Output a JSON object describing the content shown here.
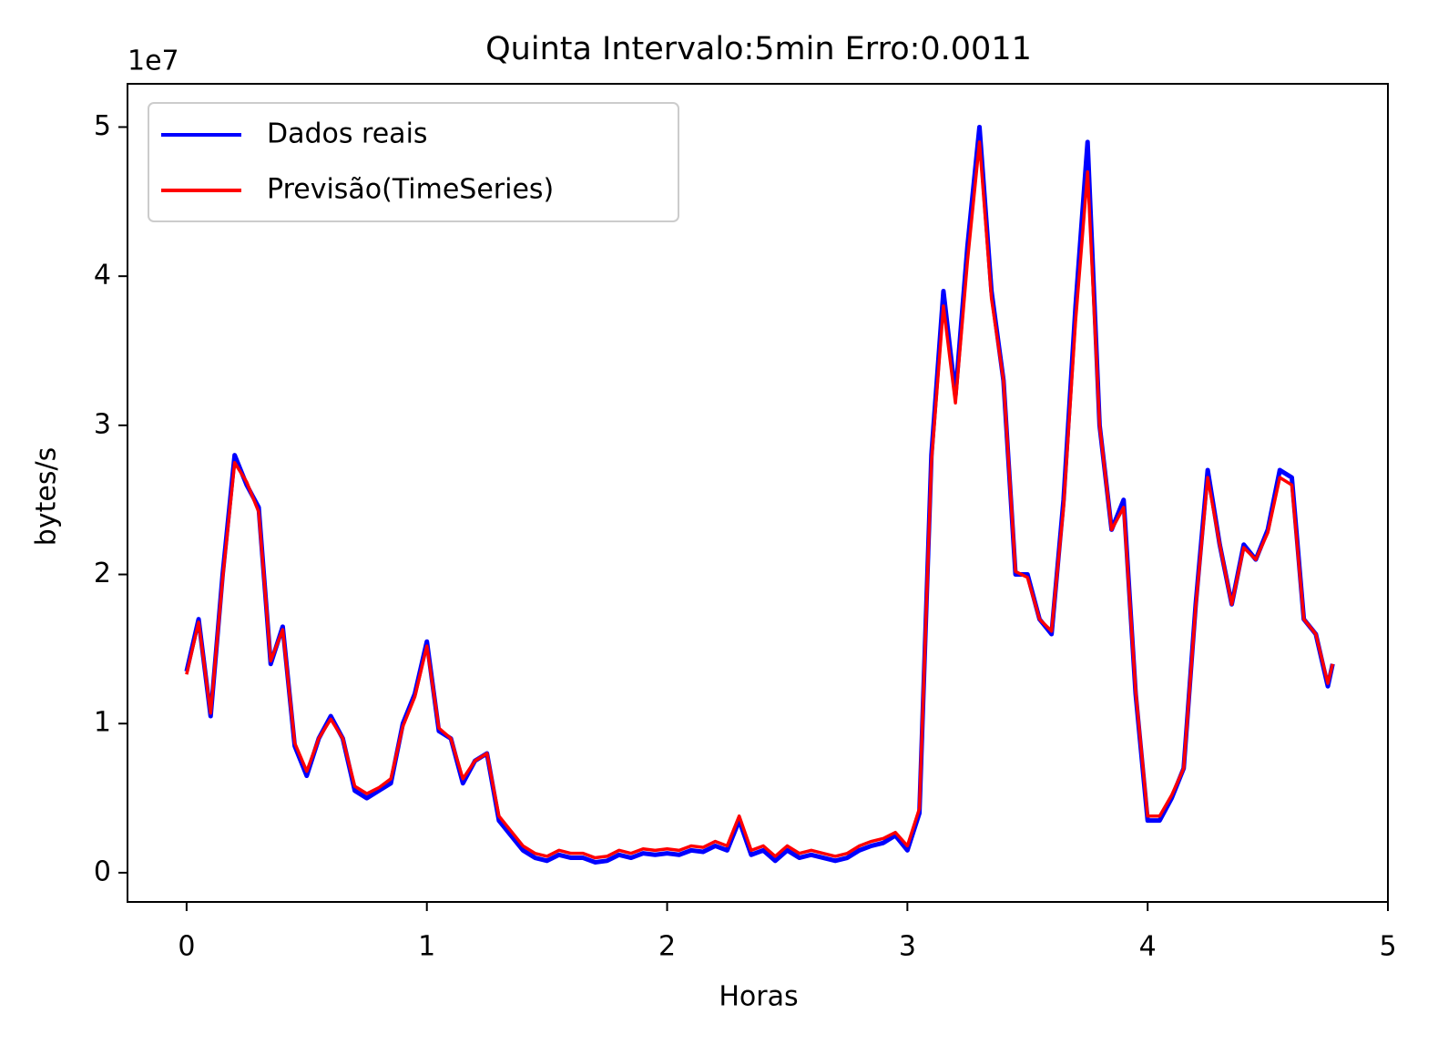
{
  "chart_data": {
    "type": "line",
    "title": "Quinta Intervalo:5min Erro:0.0011",
    "x_label": "Horas",
    "y_label": "bytes/s",
    "y_offset_text": "1e7",
    "x": [
      0,
      0.05,
      0.1,
      0.15,
      0.2,
      0.25,
      0.3,
      0.35,
      0.4,
      0.45,
      0.5,
      0.55,
      0.6,
      0.65,
      0.7,
      0.75,
      0.8,
      0.85,
      0.9,
      0.95,
      1.0,
      1.05,
      1.1,
      1.15,
      1.2,
      1.25,
      1.3,
      1.35,
      1.4,
      1.45,
      1.5,
      1.55,
      1.6,
      1.65,
      1.7,
      1.75,
      1.8,
      1.85,
      1.9,
      1.95,
      2.0,
      2.05,
      2.1,
      2.15,
      2.2,
      2.25,
      2.3,
      2.35,
      2.4,
      2.45,
      2.5,
      2.55,
      2.6,
      2.65,
      2.7,
      2.75,
      2.8,
      2.85,
      2.9,
      2.95,
      3.0,
      3.05,
      3.1,
      3.15,
      3.2,
      3.25,
      3.3,
      3.35,
      3.4,
      3.45,
      3.5,
      3.55,
      3.6,
      3.65,
      3.7,
      3.75,
      3.8,
      3.85,
      3.9,
      3.95,
      4.0,
      4.05,
      4.1,
      4.15,
      4.2,
      4.25,
      4.3,
      4.35,
      4.4,
      4.45,
      4.5,
      4.55,
      4.6,
      4.65,
      4.7,
      4.75,
      4.77
    ],
    "series": [
      {
        "name": "Dados reais",
        "color": "#0000ff",
        "width": 5,
        "values": [
          1.35,
          1.7,
          1.05,
          2.0,
          2.8,
          2.6,
          2.45,
          1.4,
          1.65,
          0.85,
          0.65,
          0.9,
          1.05,
          0.9,
          0.55,
          0.5,
          0.55,
          0.6,
          1.0,
          1.2,
          1.55,
          0.95,
          0.9,
          0.6,
          0.75,
          0.8,
          0.35,
          0.25,
          0.15,
          0.1,
          0.08,
          0.12,
          0.1,
          0.1,
          0.07,
          0.08,
          0.12,
          0.1,
          0.13,
          0.12,
          0.13,
          0.12,
          0.15,
          0.14,
          0.18,
          0.15,
          0.35,
          0.12,
          0.15,
          0.08,
          0.15,
          0.1,
          0.12,
          0.1,
          0.08,
          0.1,
          0.15,
          0.18,
          0.2,
          0.25,
          0.15,
          0.4,
          2.8,
          3.9,
          3.2,
          4.2,
          5.0,
          3.9,
          3.3,
          2.0,
          2.0,
          1.7,
          1.6,
          2.5,
          3.8,
          4.9,
          3.0,
          2.3,
          2.5,
          1.2,
          0.35,
          0.35,
          0.5,
          0.7,
          1.8,
          2.7,
          2.2,
          1.8,
          2.2,
          2.1,
          2.3,
          2.7,
          2.65,
          1.7,
          1.6,
          1.25,
          1.4
        ]
      },
      {
        "name": "Previsão(TimeSeries)",
        "color": "#ff0000",
        "width": 3.5,
        "values": [
          1.33,
          1.68,
          1.07,
          1.97,
          2.75,
          2.62,
          2.42,
          1.42,
          1.63,
          0.87,
          0.68,
          0.9,
          1.03,
          0.9,
          0.58,
          0.53,
          0.57,
          0.63,
          0.98,
          1.18,
          1.52,
          0.97,
          0.9,
          0.63,
          0.75,
          0.8,
          0.38,
          0.28,
          0.18,
          0.13,
          0.11,
          0.15,
          0.13,
          0.13,
          0.1,
          0.11,
          0.15,
          0.13,
          0.16,
          0.15,
          0.16,
          0.15,
          0.18,
          0.17,
          0.21,
          0.18,
          0.38,
          0.15,
          0.18,
          0.11,
          0.18,
          0.13,
          0.15,
          0.13,
          0.11,
          0.13,
          0.18,
          0.21,
          0.23,
          0.27,
          0.18,
          0.43,
          2.75,
          3.8,
          3.15,
          4.1,
          4.9,
          3.85,
          3.3,
          2.02,
          1.98,
          1.7,
          1.62,
          2.45,
          3.7,
          4.7,
          3.0,
          2.3,
          2.45,
          1.22,
          0.38,
          0.38,
          0.52,
          0.7,
          1.78,
          2.65,
          2.2,
          1.8,
          2.18,
          2.1,
          2.28,
          2.65,
          2.6,
          1.7,
          1.6,
          1.27,
          1.4
        ]
      }
    ],
    "xlim": [
      -0.246,
      5.0
    ],
    "ylim": [
      -0.196,
      5.29
    ],
    "xticks": [
      0,
      1,
      2,
      3,
      4,
      5
    ],
    "yticks": [
      0,
      1,
      2,
      3,
      4,
      5
    ],
    "grid": false,
    "legend": "upper left"
  }
}
